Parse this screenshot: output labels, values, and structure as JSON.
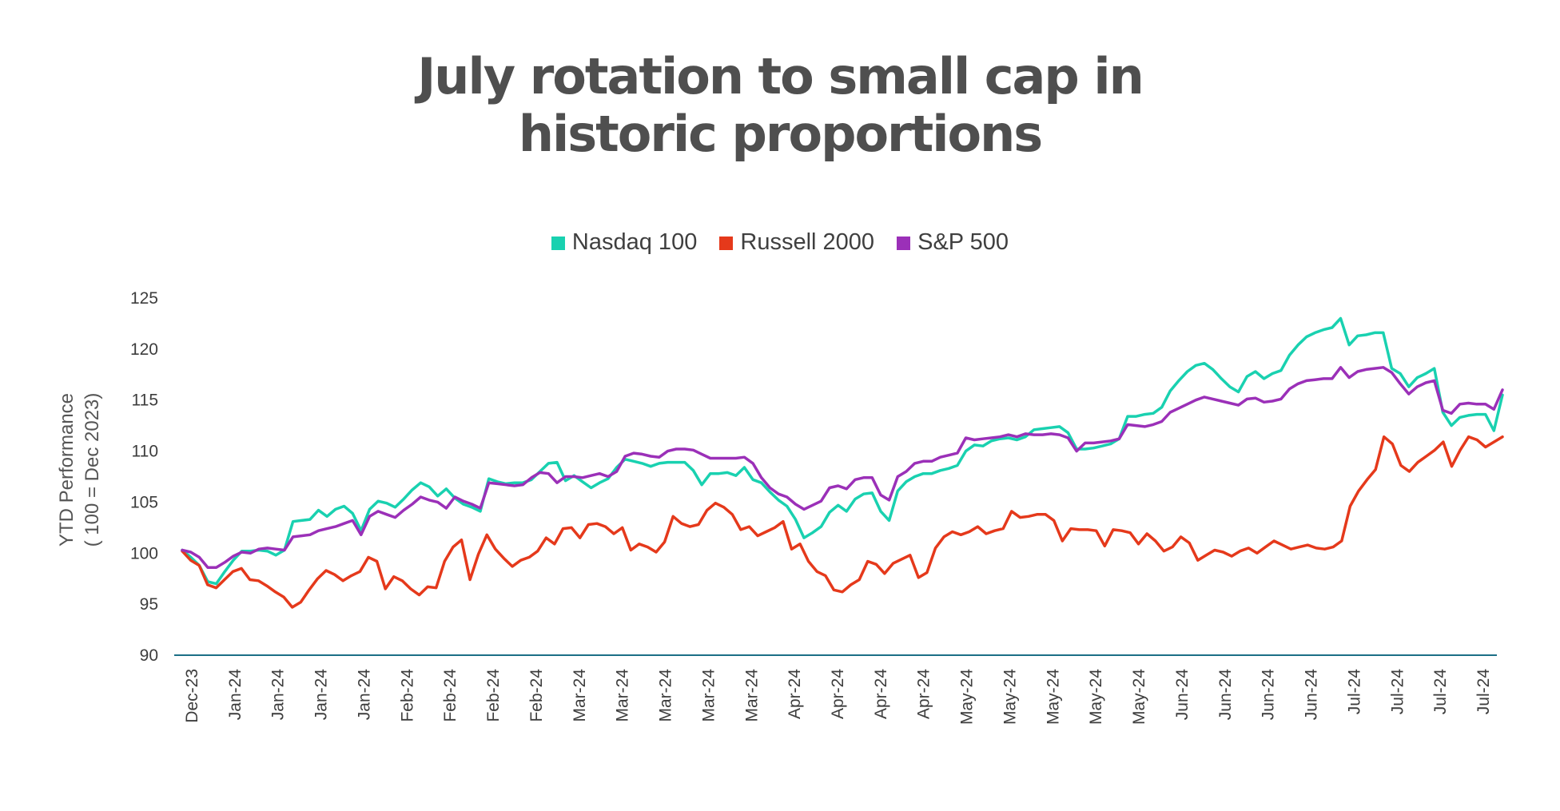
{
  "chart_data": {
    "type": "line",
    "title": [
      "July rotation to small cap in",
      "historic proportions"
    ],
    "ylabel": [
      "YTD Performance",
      "( 100 = Dec 2023)"
    ],
    "xlabel": "",
    "ylim": [
      90,
      125
    ],
    "yticks": [
      "125",
      "120",
      "115",
      "110",
      "105",
      "100",
      "95",
      "90"
    ],
    "x_tick_labels": [
      "Dec-23",
      "Jan-24",
      "Jan-24",
      "Jan-24",
      "Jan-24",
      "Feb-24",
      "Feb-24",
      "Feb-24",
      "Feb-24",
      "Mar-24",
      "Mar-24",
      "Mar-24",
      "Mar-24",
      "Mar-24",
      "Apr-24",
      "Apr-24",
      "Apr-24",
      "Apr-24",
      "May-24",
      "May-24",
      "May-24",
      "May-24",
      "May-24",
      "Jun-24",
      "Jun-24",
      "Jun-24",
      "Jun-24",
      "Jul-24",
      "Jul-24",
      "Jul-24",
      "Jul-24"
    ],
    "legend_position": "top-center",
    "grid": false,
    "series": [
      {
        "name": "Nasdaq 100",
        "color": "#19d1b0",
        "values": [
          100.3,
          99.6,
          98.8,
          97.2,
          97.0,
          98.2,
          99.3,
          100.2,
          100.2,
          100.3,
          100.2,
          99.8,
          100.3,
          103.1,
          103.2,
          103.3,
          104.2,
          103.6,
          104.3,
          104.6,
          103.9,
          102.2,
          104.3,
          105.1,
          104.9,
          104.5,
          105.3,
          106.2,
          106.9,
          106.5,
          105.6,
          106.3,
          105.4,
          104.8,
          104.5,
          104.1,
          107.3,
          107.0,
          106.8,
          106.9,
          106.9,
          107.2,
          108.0,
          108.8,
          108.9,
          107.1,
          107.6,
          107.0,
          106.4,
          106.9,
          107.3,
          108.4,
          109.2,
          109.0,
          108.8,
          108.5,
          108.8,
          108.9,
          108.9,
          108.9,
          108.1,
          106.7,
          107.8,
          107.8,
          107.9,
          107.6,
          108.4,
          107.2,
          106.9,
          106.0,
          105.2,
          104.6,
          103.3,
          101.5,
          102.0,
          102.6,
          104.0,
          104.7,
          104.1,
          105.3,
          105.8,
          105.9,
          104.1,
          103.2,
          106.1,
          107.0,
          107.5,
          107.8,
          107.8,
          108.1,
          108.3,
          108.6,
          110.0,
          110.6,
          110.5,
          111.0,
          111.2,
          111.3,
          111.1,
          111.4,
          112.1,
          112.2,
          112.3,
          112.4,
          111.8,
          110.2,
          110.2,
          110.3,
          110.5,
          110.7,
          111.2,
          113.4,
          113.4,
          113.6,
          113.7,
          114.3,
          115.9,
          116.9,
          117.8,
          118.4,
          118.6,
          118.0,
          117.1,
          116.3,
          115.8,
          117.3,
          117.8,
          117.1,
          117.6,
          117.9,
          119.4,
          120.4,
          121.2,
          121.6,
          121.9,
          122.1,
          123.0,
          120.4,
          121.3,
          121.4,
          121.6,
          121.6,
          118.1,
          117.6,
          116.3,
          117.2,
          117.6,
          118.1,
          113.8,
          112.5,
          113.3,
          113.5,
          113.6,
          113.6,
          112.0,
          115.5
        ],
        "stroke_width": 3.5
      },
      {
        "name": "Russell 2000",
        "color": "#e5391b",
        "values": [
          100.2,
          99.3,
          98.8,
          96.9,
          96.6,
          97.4,
          98.2,
          98.5,
          97.4,
          97.3,
          96.8,
          96.2,
          95.7,
          94.7,
          95.2,
          96.4,
          97.5,
          98.3,
          97.9,
          97.3,
          97.8,
          98.2,
          99.6,
          99.2,
          96.5,
          97.7,
          97.3,
          96.5,
          95.9,
          96.7,
          96.6,
          99.2,
          100.6,
          101.3,
          97.4,
          99.9,
          101.8,
          100.4,
          99.5,
          98.7,
          99.3,
          99.6,
          100.2,
          101.5,
          100.9,
          102.4,
          102.5,
          101.5,
          102.8,
          102.9,
          102.6,
          101.9,
          102.5,
          100.3,
          100.9,
          100.6,
          100.1,
          101.1,
          103.6,
          102.9,
          102.6,
          102.8,
          104.2,
          104.9,
          104.5,
          103.8,
          102.3,
          102.6,
          101.7,
          102.1,
          102.5,
          103.1,
          100.4,
          100.9,
          99.2,
          98.2,
          97.8,
          96.4,
          96.2,
          96.9,
          97.4,
          99.2,
          98.9,
          98.0,
          99.0,
          99.4,
          99.8,
          97.6,
          98.1,
          100.5,
          101.6,
          102.1,
          101.8,
          102.1,
          102.6,
          101.9,
          102.2,
          102.4,
          104.1,
          103.5,
          103.6,
          103.8,
          103.8,
          103.2,
          101.2,
          102.4,
          102.3,
          102.3,
          102.2,
          100.7,
          102.3,
          102.2,
          102.0,
          100.9,
          101.9,
          101.2,
          100.2,
          100.6,
          101.6,
          101.0,
          99.3,
          99.8,
          100.3,
          100.1,
          99.7,
          100.2,
          100.5,
          100.0,
          100.6,
          101.2,
          100.8,
          100.4,
          100.6,
          100.8,
          100.5,
          100.4,
          100.6,
          101.2,
          104.6,
          106.1,
          107.2,
          108.2,
          111.4,
          110.7,
          108.6,
          108.0,
          108.9,
          109.5,
          110.1,
          110.9,
          108.5,
          110.1,
          111.4,
          111.1,
          110.4,
          110.9,
          111.4
        ],
        "stroke_width": 3.5
      },
      {
        "name": "S&P 500",
        "color": "#9b30b8",
        "values": [
          100.3,
          100.1,
          99.6,
          98.6,
          98.6,
          99.1,
          99.7,
          100.1,
          100.0,
          100.4,
          100.5,
          100.4,
          100.3,
          101.6,
          101.7,
          101.8,
          102.2,
          102.4,
          102.6,
          102.9,
          103.2,
          101.8,
          103.6,
          104.1,
          103.8,
          103.5,
          104.2,
          104.8,
          105.5,
          105.2,
          105.0,
          104.4,
          105.5,
          105.1,
          104.8,
          104.4,
          106.9,
          106.8,
          106.7,
          106.6,
          106.7,
          107.4,
          107.9,
          107.8,
          106.9,
          107.5,
          107.5,
          107.4,
          107.6,
          107.8,
          107.5,
          108.0,
          109.5,
          109.8,
          109.7,
          109.5,
          109.4,
          110.0,
          110.2,
          110.2,
          110.1,
          109.7,
          109.3,
          109.3,
          109.3,
          109.3,
          109.4,
          108.8,
          107.4,
          106.4,
          105.8,
          105.5,
          104.8,
          104.3,
          104.7,
          105.1,
          106.4,
          106.6,
          106.3,
          107.2,
          107.4,
          107.4,
          105.7,
          105.2,
          107.5,
          108.0,
          108.8,
          109.0,
          109.0,
          109.4,
          109.6,
          109.8,
          111.3,
          111.1,
          111.2,
          111.3,
          111.4,
          111.6,
          111.4,
          111.7,
          111.6,
          111.6,
          111.7,
          111.6,
          111.3,
          110.0,
          110.8,
          110.8,
          110.9,
          111.0,
          111.2,
          112.6,
          112.5,
          112.4,
          112.6,
          112.9,
          113.8,
          114.2,
          114.6,
          115.0,
          115.3,
          115.1,
          114.9,
          114.7,
          114.5,
          115.1,
          115.2,
          114.8,
          114.9,
          115.1,
          116.1,
          116.6,
          116.9,
          117.0,
          117.1,
          117.1,
          118.2,
          117.2,
          117.8,
          118.0,
          118.1,
          118.2,
          117.7,
          116.6,
          115.6,
          116.3,
          116.7,
          116.9,
          114.0,
          113.7,
          114.6,
          114.7,
          114.6,
          114.6,
          114.1,
          116.0
        ],
        "stroke_width": 3.5
      }
    ]
  }
}
